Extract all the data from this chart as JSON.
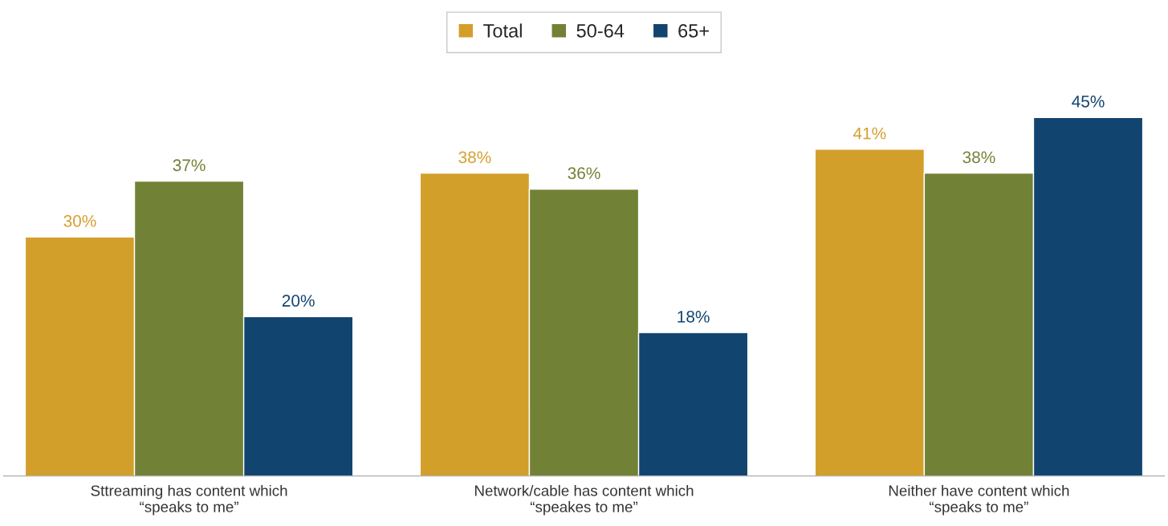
{
  "chart_data": {
    "type": "bar",
    "categories": [
      "Sttreaming has content which\n“speaks to me”",
      "Network/cable has content which\n“speakes to me”",
      "Neither have content which\n“speaks to me”"
    ],
    "series": [
      {
        "name": "Total",
        "color": "#d39f2b",
        "values": [
          30,
          38,
          41
        ],
        "value_labels": [
          "30%",
          "38%",
          "41%"
        ]
      },
      {
        "name": "50-64",
        "color": "#718236",
        "values": [
          37,
          36,
          38
        ],
        "value_labels": [
          "37%",
          "36%",
          "38%"
        ]
      },
      {
        "name": "65+",
        "color": "#124470",
        "values": [
          20,
          18,
          45
        ],
        "value_labels": [
          "20%",
          "18%",
          "45%"
        ]
      }
    ],
    "legend": "top",
    "grid": false
  }
}
